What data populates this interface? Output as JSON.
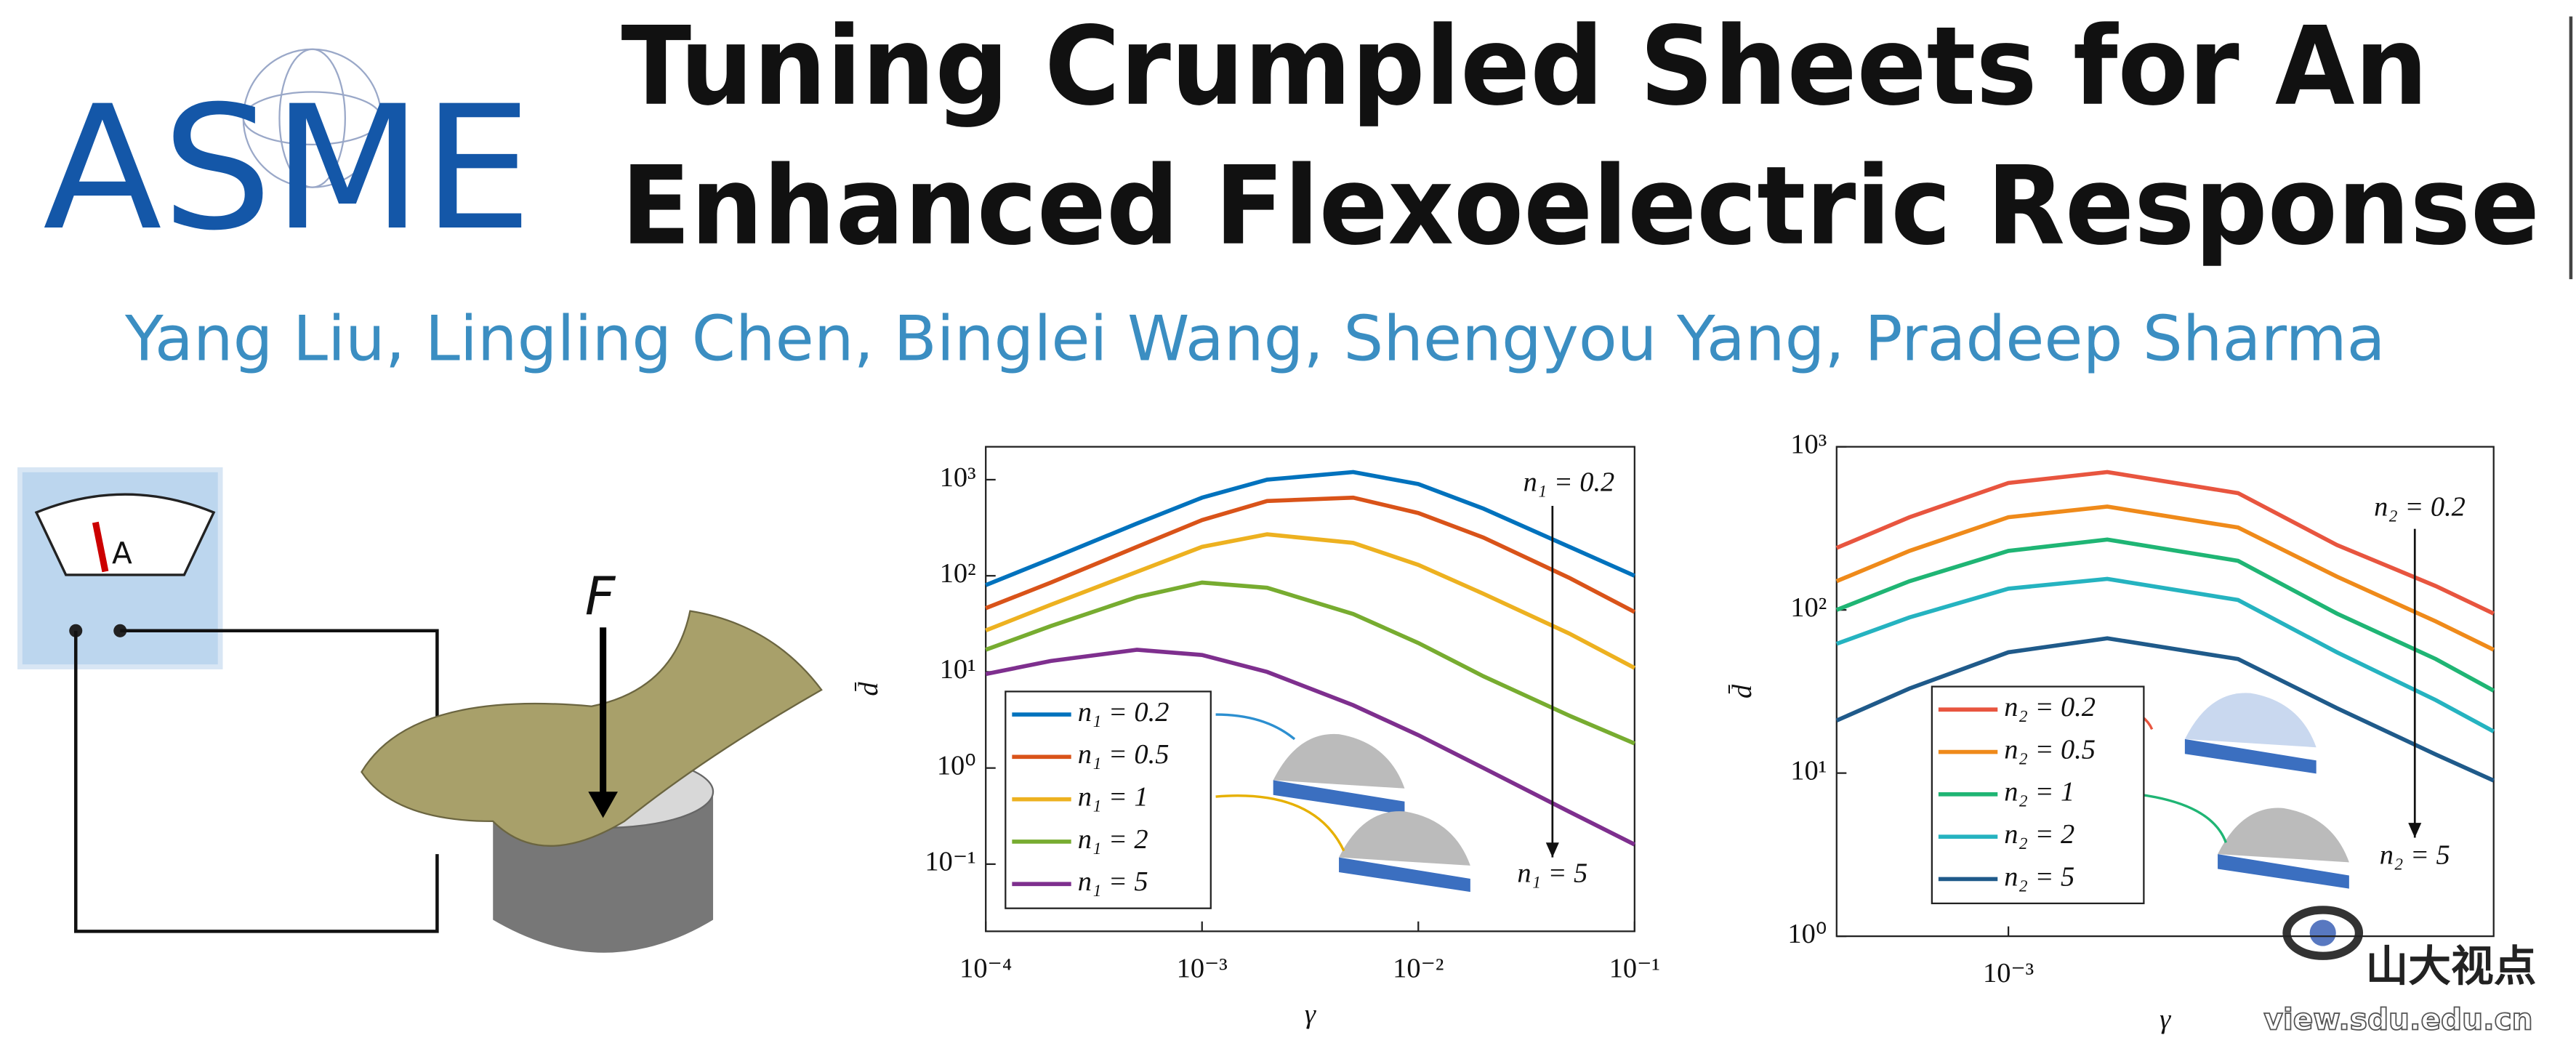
{
  "header": {
    "logo": "ASME",
    "title_lines": [
      "Tuning Crumpled Sheets for An",
      "Enhanced Flexoelectric Response"
    ],
    "authors": "Yang Liu, Lingling Chen, Binglei Wang, Shengyou Yang, Pradeep Sharma"
  },
  "illustration": {
    "meter_label": "A",
    "force_label": "F"
  },
  "watermark": {
    "name": "山大视点",
    "url": "view.sdu.edu.cn"
  },
  "chart_data": [
    {
      "type": "line",
      "log_x": true,
      "log_y": true,
      "x_label": "γ",
      "y_label": "d̄",
      "x": [
        0.0001,
        0.0002,
        0.0005,
        0.001,
        0.002,
        0.005,
        0.01,
        0.02,
        0.05,
        0.1
      ],
      "xlim": [
        0.0001,
        0.1
      ],
      "xticks": [
        {
          "value": 0.0001,
          "label": "10⁻⁴"
        },
        {
          "value": 0.001,
          "label": "10⁻³"
        },
        {
          "value": 0.01,
          "label": "10⁻²"
        },
        {
          "value": 0.1,
          "label": "10⁻¹"
        }
      ],
      "ylim": [
        0.02,
        2200
      ],
      "yticks": [
        {
          "value": 0.1,
          "label": "10⁻¹"
        },
        {
          "value": 1,
          "label": "10⁰"
        },
        {
          "value": 10,
          "label": "10¹"
        },
        {
          "value": 100,
          "label": "10²"
        },
        {
          "value": 1000,
          "label": "10³"
        }
      ],
      "legend": "lower left",
      "series": [
        {
          "name": "n₁ = 0.2",
          "color": "#0072bd",
          "values": [
            80,
            150,
            350,
            650,
            1000,
            1200,
            900,
            500,
            200,
            100
          ]
        },
        {
          "name": "n₁ = 0.5",
          "color": "#d95319",
          "values": [
            46,
            85,
            200,
            380,
            600,
            650,
            450,
            250,
            95,
            42
          ]
        },
        {
          "name": "n₁ = 1",
          "color": "#edb120",
          "values": [
            27,
            50,
            110,
            200,
            270,
            220,
            130,
            65,
            25,
            11
          ]
        },
        {
          "name": "n₁ = 2",
          "color": "#77ac30",
          "values": [
            17,
            30,
            60,
            85,
            75,
            40,
            20,
            9,
            3.5,
            1.8
          ]
        },
        {
          "name": "n₁ = 5",
          "color": "#7e2f8e",
          "values": [
            9.5,
            13,
            17,
            15,
            10,
            4.5,
            2.2,
            1.0,
            0.35,
            0.16
          ]
        }
      ],
      "annotations": [
        "n₁ = 0.2",
        "n₁ = 5"
      ]
    },
    {
      "type": "line",
      "log_x": true,
      "log_y": true,
      "x_label": "γ",
      "y_label": "d̄",
      "x": [
        0.0003,
        0.0005,
        0.001,
        0.002,
        0.005,
        0.01,
        0.02,
        0.03
      ],
      "xlim": [
        0.0003,
        0.03
      ],
      "xticks": [
        {
          "value": 0.001,
          "label": "10⁻³"
        }
      ],
      "ylim": [
        1,
        1000
      ],
      "yticks": [
        {
          "value": 1,
          "label": "10⁰"
        },
        {
          "value": 10,
          "label": "10¹"
        },
        {
          "value": 100,
          "label": "10²"
        },
        {
          "value": 1000,
          "label": "10³"
        }
      ],
      "legend": "lower left",
      "series": [
        {
          "name": "n₂ = 0.2",
          "color": "#e8553f",
          "values": [
            240,
            370,
            600,
            700,
            520,
            250,
            140,
            95
          ]
        },
        {
          "name": "n₂ = 0.5",
          "color": "#ef8a1a",
          "values": [
            150,
            230,
            370,
            430,
            320,
            160,
            85,
            57
          ]
        },
        {
          "name": "n₂ = 1",
          "color": "#1fb574",
          "values": [
            100,
            150,
            230,
            270,
            200,
            95,
            50,
            32
          ]
        },
        {
          "name": "n₂ = 2",
          "color": "#25b3c0",
          "values": [
            62,
            90,
            135,
            155,
            115,
            55,
            28,
            18
          ]
        },
        {
          "name": "n₂ = 5",
          "color": "#1f5a8a",
          "values": [
            21,
            33,
            55,
            67,
            50,
            25,
            13,
            9
          ]
        }
      ],
      "annotations": [
        "n₂ = 0.2",
        "n₂ = 5"
      ]
    }
  ]
}
